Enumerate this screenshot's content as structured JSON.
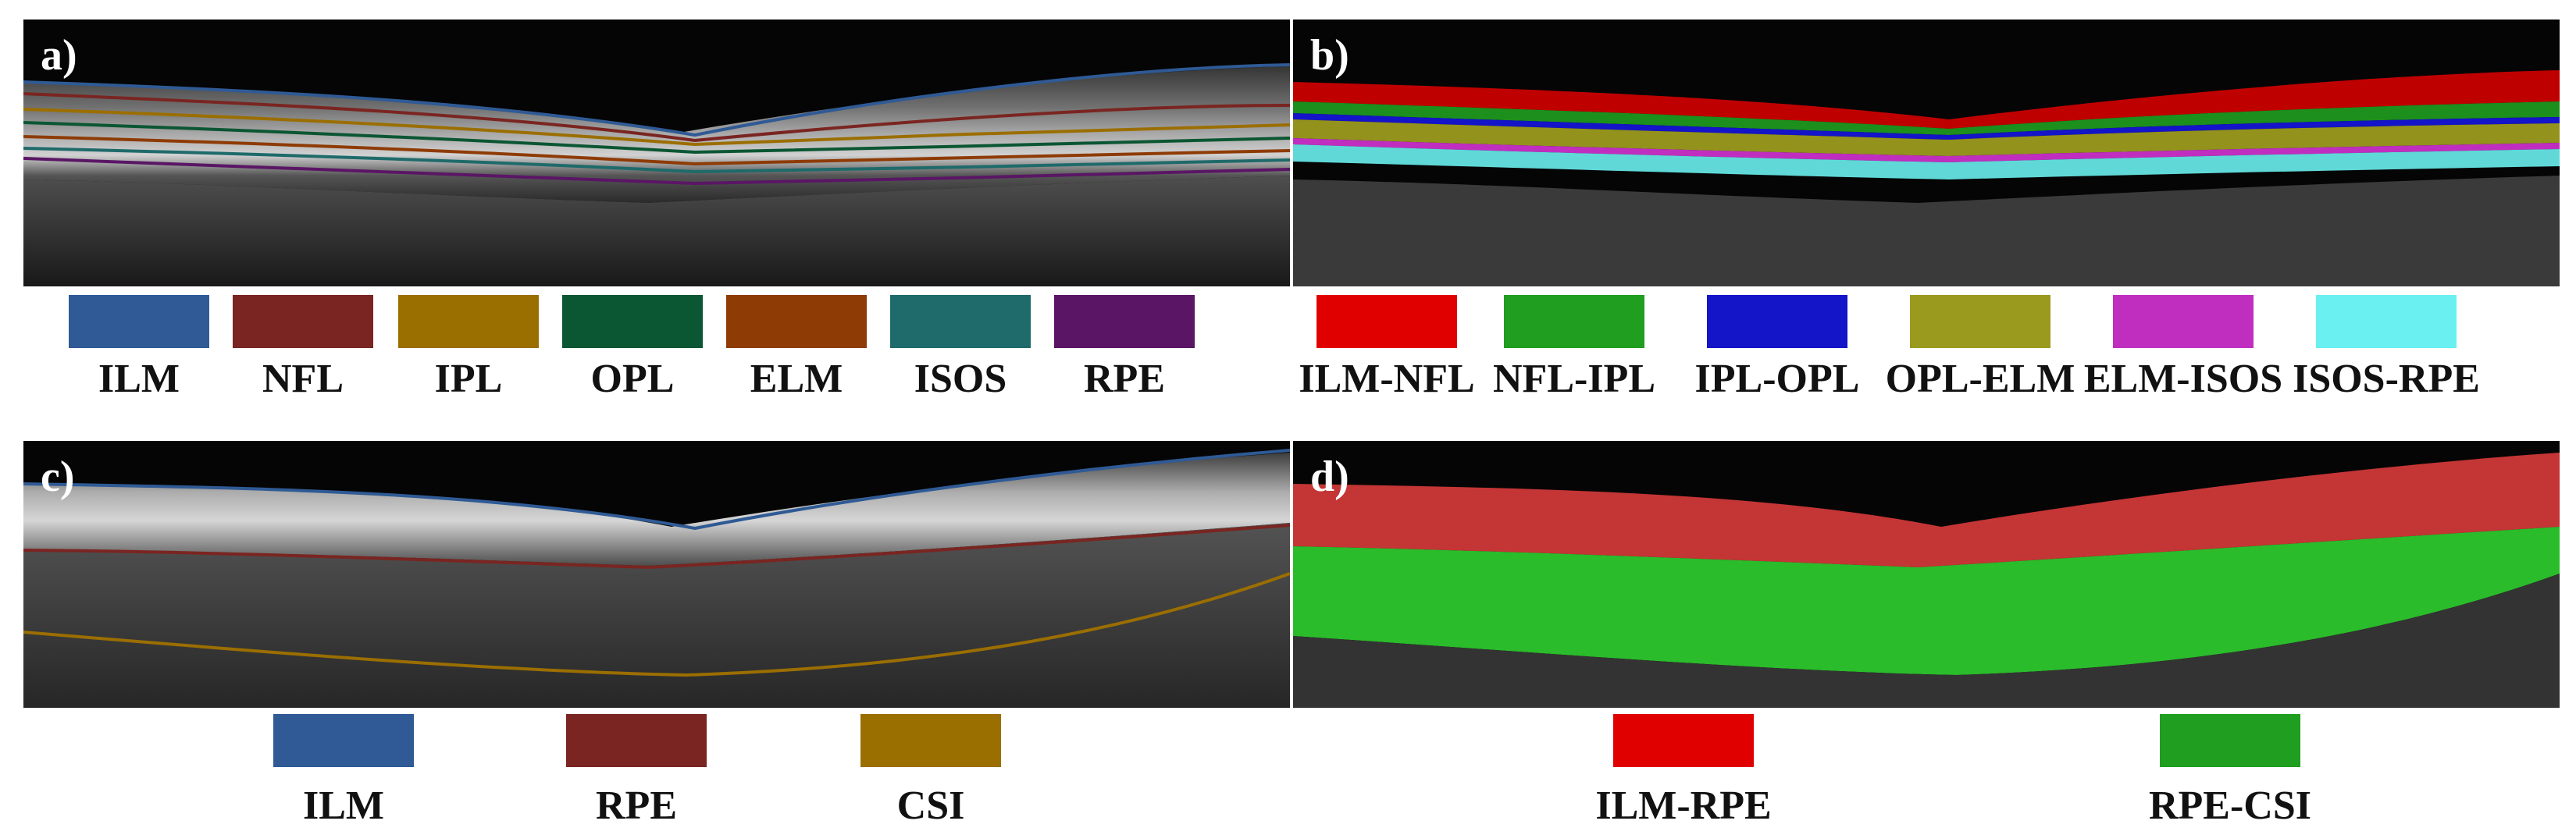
{
  "panels": [
    {
      "id": "a",
      "label": "a)",
      "mode": "lines",
      "legend": [
        {
          "name": "ILM",
          "color": "#2f5a95"
        },
        {
          "name": "NFL",
          "color": "#7a2521"
        },
        {
          "name": "IPL",
          "color": "#9b6e00"
        },
        {
          "name": "OPL",
          "color": "#0b5633"
        },
        {
          "name": "ELM",
          "color": "#8e3b05"
        },
        {
          "name": "ISOS",
          "color": "#1f6a6a"
        },
        {
          "name": "RPE",
          "color": "#5a1665"
        }
      ]
    },
    {
      "id": "b",
      "label": "b)",
      "mode": "regions",
      "legend": [
        {
          "name": "ILM-NFL",
          "color": "#e00000"
        },
        {
          "name": "NFL-IPL",
          "color": "#1f9e1f"
        },
        {
          "name": "IPL-OPL",
          "color": "#1414c8"
        },
        {
          "name": "OPL-ELM",
          "color": "#9a9a1f"
        },
        {
          "name": "ELM-ISOS",
          "color": "#c02ec0"
        },
        {
          "name": "ISOS-RPE",
          "color": "#6af0f0"
        }
      ]
    },
    {
      "id": "c",
      "label": "c)",
      "mode": "lines",
      "legend": [
        {
          "name": "ILM",
          "color": "#2f5a95"
        },
        {
          "name": "RPE",
          "color": "#7a2521"
        },
        {
          "name": "CSI",
          "color": "#9b6e00"
        }
      ]
    },
    {
      "id": "d",
      "label": "d)",
      "mode": "regions",
      "legend": [
        {
          "name": "ILM-RPE",
          "color": "#e00000"
        },
        {
          "name": "RPE-CSI",
          "color": "#1f9e1f"
        }
      ]
    }
  ]
}
